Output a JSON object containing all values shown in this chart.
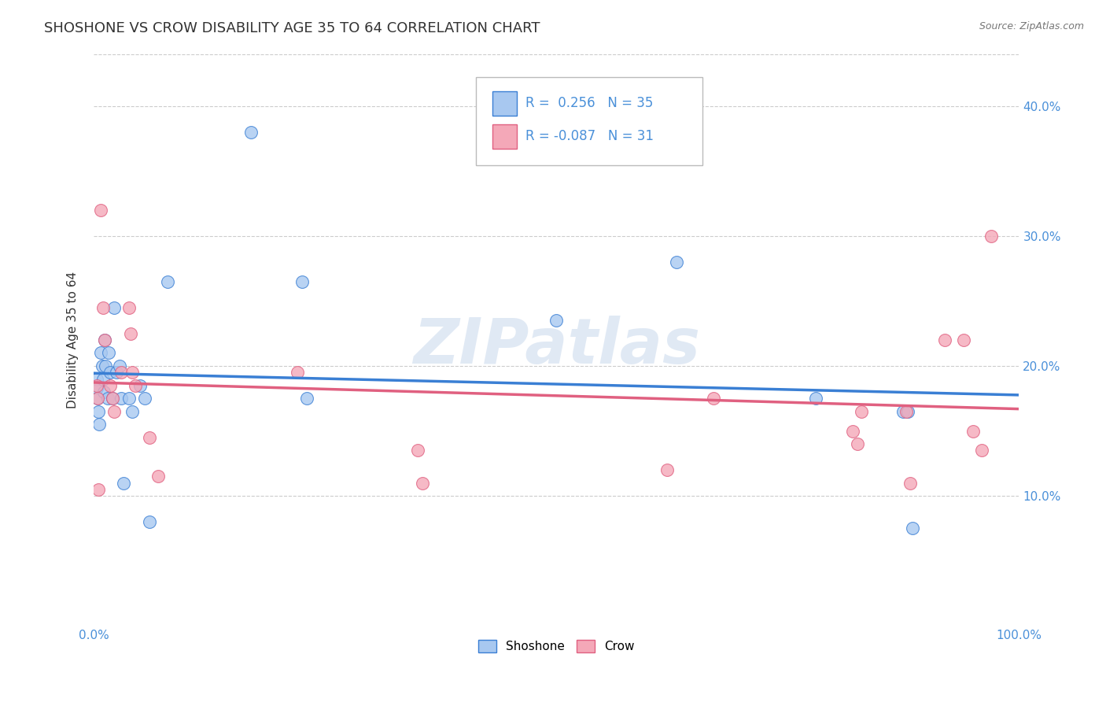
{
  "title": "SHOSHONE VS CROW DISABILITY AGE 35 TO 64 CORRELATION CHART",
  "source": "Source: ZipAtlas.com",
  "ylabel": "Disability Age 35 to 64",
  "xlim": [
    0.0,
    1.0
  ],
  "ylim": [
    0.0,
    0.44
  ],
  "yticks": [
    0.1,
    0.2,
    0.3,
    0.4
  ],
  "yticklabels": [
    "10.0%",
    "20.0%",
    "30.0%",
    "40.0%"
  ],
  "shoshone_color": "#a8c8f0",
  "crow_color": "#f4a8b8",
  "shoshone_R": 0.256,
  "shoshone_N": 35,
  "crow_R": -0.087,
  "crow_N": 31,
  "legend_label_shoshone": "Shoshone",
  "legend_label_crow": "Crow",
  "shoshone_x": [
    0.003,
    0.003,
    0.004,
    0.005,
    0.006,
    0.008,
    0.009,
    0.01,
    0.011,
    0.012,
    0.013,
    0.015,
    0.016,
    0.018,
    0.02,
    0.022,
    0.025,
    0.028,
    0.03,
    0.032,
    0.038,
    0.042,
    0.05,
    0.055,
    0.06,
    0.08,
    0.17,
    0.225,
    0.23,
    0.5,
    0.63,
    0.78,
    0.875,
    0.88,
    0.885
  ],
  "shoshone_y": [
    0.19,
    0.183,
    0.175,
    0.165,
    0.155,
    0.21,
    0.2,
    0.19,
    0.18,
    0.22,
    0.2,
    0.175,
    0.21,
    0.195,
    0.175,
    0.245,
    0.195,
    0.2,
    0.175,
    0.11,
    0.175,
    0.165,
    0.185,
    0.175,
    0.08,
    0.265,
    0.38,
    0.265,
    0.175,
    0.235,
    0.28,
    0.175,
    0.165,
    0.165,
    0.075
  ],
  "crow_x": [
    0.003,
    0.004,
    0.005,
    0.008,
    0.01,
    0.012,
    0.018,
    0.02,
    0.022,
    0.03,
    0.038,
    0.04,
    0.042,
    0.045,
    0.06,
    0.07,
    0.22,
    0.35,
    0.355,
    0.62,
    0.67,
    0.82,
    0.825,
    0.83,
    0.878,
    0.882,
    0.92,
    0.94,
    0.95,
    0.96,
    0.97
  ],
  "crow_y": [
    0.185,
    0.175,
    0.105,
    0.32,
    0.245,
    0.22,
    0.185,
    0.175,
    0.165,
    0.195,
    0.245,
    0.225,
    0.195,
    0.185,
    0.145,
    0.115,
    0.195,
    0.135,
    0.11,
    0.12,
    0.175,
    0.15,
    0.14,
    0.165,
    0.165,
    0.11,
    0.22,
    0.22,
    0.15,
    0.135,
    0.3
  ],
  "background_color": "#ffffff",
  "grid_color": "#cccccc",
  "watermark_text": "ZIPatlas",
  "marker_size": 130,
  "shoshone_line_color": "#3a7fd4",
  "crow_line_color": "#e06080"
}
